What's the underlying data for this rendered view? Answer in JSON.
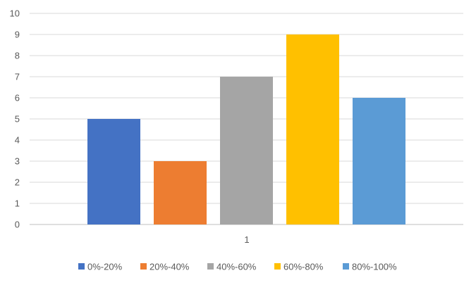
{
  "chart_data": {
    "type": "bar",
    "categories": [
      "1"
    ],
    "series": [
      {
        "name": "0%-20%",
        "values": [
          5
        ],
        "color": "#4472C4"
      },
      {
        "name": "20%-40%",
        "values": [
          3
        ],
        "color": "#ED7D31"
      },
      {
        "name": "40%-60%",
        "values": [
          7
        ],
        "color": "#A5A5A5"
      },
      {
        "name": "60%-80%",
        "values": [
          9
        ],
        "color": "#FFC000"
      },
      {
        "name": "80%-100%",
        "values": [
          6
        ],
        "color": "#5B9BD5"
      }
    ],
    "ylim": [
      0,
      10
    ],
    "yticks": [
      "0",
      "1",
      "2",
      "3",
      "4",
      "5",
      "6",
      "7",
      "8",
      "9",
      "10"
    ],
    "grid": true,
    "legend_position": "bottom",
    "gridline_color": "#D9D9D9",
    "axis_color": "#BFBFBF"
  }
}
